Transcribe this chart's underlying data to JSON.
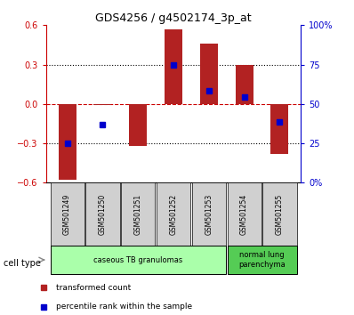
{
  "title": "GDS4256 / g4502174_3p_at",
  "samples": [
    "GSM501249",
    "GSM501250",
    "GSM501251",
    "GSM501252",
    "GSM501253",
    "GSM501254",
    "GSM501255"
  ],
  "red_bar_values": [
    -0.58,
    -0.01,
    -0.32,
    0.57,
    0.46,
    0.3,
    -0.38
  ],
  "blue_dot_values": [
    -0.3,
    -0.16,
    null,
    0.3,
    0.1,
    0.05,
    -0.14
  ],
  "ylim": [
    -0.6,
    0.6
  ],
  "y2lim": [
    0,
    100
  ],
  "yticks": [
    -0.6,
    -0.3,
    0,
    0.3,
    0.6
  ],
  "y2ticks": [
    0,
    25,
    50,
    75,
    100
  ],
  "y2ticklabels": [
    "0%",
    "25",
    "50",
    "75",
    "100%"
  ],
  "hlines_dotted": [
    -0.3,
    0.3
  ],
  "hline_dashed": 0,
  "bar_color": "#b22222",
  "dot_color": "#0000cc",
  "groups": [
    {
      "label": "caseous TB granulomas",
      "start": 0,
      "end": 4,
      "color": "#aaffaa"
    },
    {
      "label": "normal lung\nparenchyma",
      "start": 5,
      "end": 6,
      "color": "#55cc55"
    }
  ],
  "cell_type_label": "cell type",
  "legend_red": "transformed count",
  "legend_blue": "percentile rank within the sample",
  "bar_width": 0.5
}
